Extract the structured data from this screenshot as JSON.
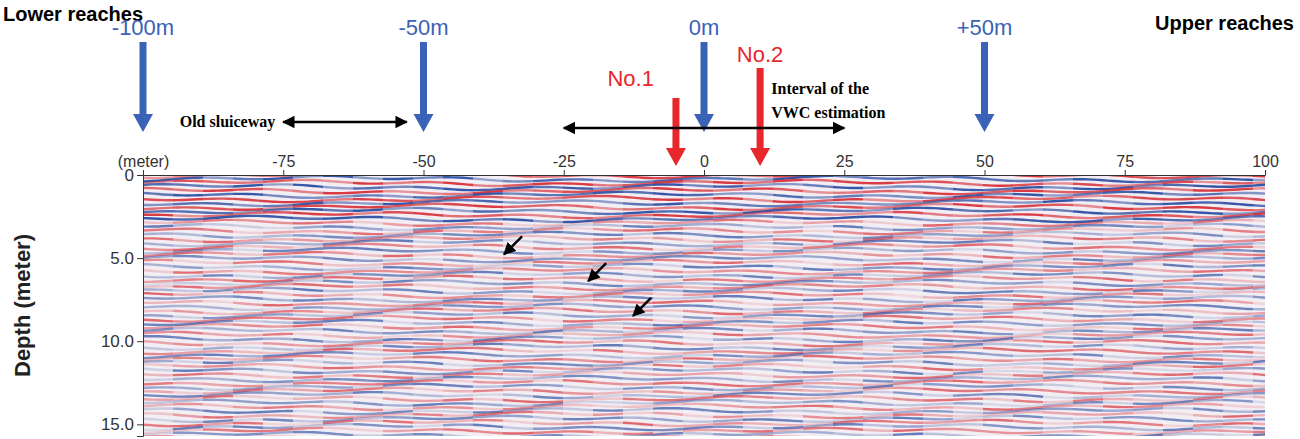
{
  "chart_data": {
    "type": "radargram",
    "xlim": [
      -100,
      100
    ],
    "xticks": [
      {
        "value": -100,
        "label": "(meter)"
      },
      -75,
      -50,
      -25,
      0,
      25,
      50,
      75,
      100
    ],
    "ylim": [
      0,
      15.7
    ],
    "yticks": [
      0,
      {
        "value": 5,
        "label": "5.0"
      },
      {
        "value": 10,
        "label": "10.0"
      },
      {
        "value": 15,
        "label": "15.0"
      }
    ],
    "y_label": "Depth (meter)",
    "left_label": "Lower reaches",
    "right_label": "Upper reaches",
    "blue_markers": {
      "color": "#3a62b6",
      "items": [
        {
          "label": "-100m",
          "x": -100
        },
        {
          "label": "-50m",
          "x": -50
        },
        {
          "label": "0m",
          "x": 0
        },
        {
          "label": "+50m",
          "x": 50
        }
      ]
    },
    "red_markers": {
      "color": "#e8262c",
      "items": [
        {
          "label": "No.1",
          "x": -5
        },
        {
          "label": "No.2",
          "x": 10
        }
      ]
    },
    "ranges": [
      {
        "label": [
          "Old sluiceway"
        ],
        "x": [
          -75,
          -53
        ]
      },
      {
        "label": [
          "Interval of the",
          "VWC estimation"
        ],
        "x": [
          -25,
          25
        ]
      }
    ],
    "arrows": [
      {
        "x": -36,
        "y": 4.9
      },
      {
        "x": -21,
        "y": 6.5
      },
      {
        "x": -13,
        "y": 8.6
      }
    ]
  }
}
